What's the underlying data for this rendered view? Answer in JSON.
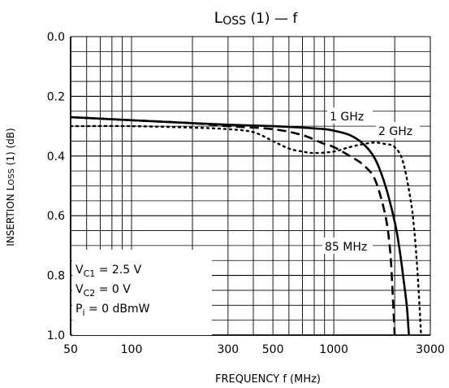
{
  "chart_data": {
    "type": "line",
    "title": {
      "main": "L",
      "sub": "OSS",
      "tail": " (1)  —  f"
    },
    "xlabel": "FREQUENCY   f    (MHz)",
    "ylabel": "INSERTION    L",
    "ylabel_sub": "OSS",
    "ylabel_tail": " (1)    (dB)",
    "x_scale": "log",
    "xlim": [
      50,
      3000
    ],
    "ylim": [
      0.0,
      1.0
    ],
    "y_inverted": true,
    "grid": true,
    "x_ticks": [
      "50",
      "100",
      "300",
      "500",
      "1000",
      "3000"
    ],
    "y_ticks": [
      "0.0",
      "0.2",
      "0.4",
      "0.6",
      "0.8",
      "1.0"
    ],
    "series": [
      {
        "name": "1 GHz",
        "style": "solid",
        "points": [
          [
            50,
            0.27
          ],
          [
            100,
            0.28
          ],
          [
            200,
            0.29
          ],
          [
            300,
            0.295
          ],
          [
            500,
            0.3
          ],
          [
            700,
            0.305
          ],
          [
            900,
            0.31
          ],
          [
            1000,
            0.315
          ],
          [
            1200,
            0.33
          ],
          [
            1400,
            0.36
          ],
          [
            1600,
            0.41
          ],
          [
            1800,
            0.5
          ],
          [
            2000,
            0.62
          ],
          [
            2100,
            0.7
          ],
          [
            2200,
            0.8
          ],
          [
            2300,
            0.91
          ],
          [
            2350,
            1.0
          ]
        ]
      },
      {
        "name": "85 MHz",
        "style": "dashed",
        "points": [
          [
            50,
            0.27
          ],
          [
            100,
            0.28
          ],
          [
            200,
            0.29
          ],
          [
            300,
            0.3
          ],
          [
            500,
            0.31
          ],
          [
            700,
            0.33
          ],
          [
            900,
            0.36
          ],
          [
            1000,
            0.37
          ],
          [
            1200,
            0.4
          ],
          [
            1400,
            0.43
          ],
          [
            1600,
            0.48
          ],
          [
            1800,
            0.6
          ],
          [
            1900,
            0.72
          ],
          [
            1950,
            0.85
          ],
          [
            2000,
            1.0
          ]
        ]
      },
      {
        "name": "2 GHz",
        "style": "dotted",
        "points": [
          [
            50,
            0.3
          ],
          [
            100,
            0.3
          ],
          [
            200,
            0.305
          ],
          [
            300,
            0.31
          ],
          [
            400,
            0.32
          ],
          [
            500,
            0.35
          ],
          [
            600,
            0.375
          ],
          [
            700,
            0.385
          ],
          [
            800,
            0.39
          ],
          [
            1000,
            0.385
          ],
          [
            1200,
            0.37
          ],
          [
            1400,
            0.36
          ],
          [
            1600,
            0.355
          ],
          [
            1800,
            0.36
          ],
          [
            2000,
            0.37
          ],
          [
            2200,
            0.42
          ],
          [
            2400,
            0.55
          ],
          [
            2500,
            0.65
          ],
          [
            2600,
            0.8
          ],
          [
            2700,
            1.0
          ]
        ]
      }
    ],
    "annotations": [
      {
        "text": "1 GHz"
      },
      {
        "text": "2 GHz"
      },
      {
        "text": "85 MHz"
      }
    ],
    "conditions": [
      {
        "main": "V",
        "sub": "C1",
        "tail": " = 2.5 V"
      },
      {
        "main": "V",
        "sub": "C2",
        "tail": " = 0 V"
      },
      {
        "main": "P",
        "sub": "i",
        "tail": " = 0 dBmW"
      }
    ]
  }
}
